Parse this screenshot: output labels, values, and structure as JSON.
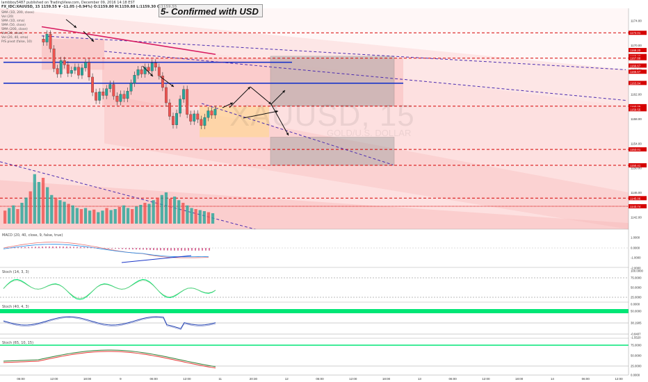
{
  "header": {
    "line1": "lambboy5487 published on TradingView.com, December 09, 2016 14:18 EST",
    "line2": "FX_IDC:XAUUSD, 15  1159.55 ▼ -11.05 (-0.94%)  O:1159.80 H:1159.88 L:1159.30 C:1159.55"
  },
  "annotation": "5- Confirmed with USD",
  "watermark": {
    "symbol": "XAUUSD, 15",
    "sub": "GOLD/U.S. DOLLAR"
  },
  "legend_items": [
    "SMA (1D, 200, close)",
    "Vol (20)",
    "SMA (1D, sma)",
    "SMA (50, close)",
    "SMA (200, close)",
    "Vol (20, close)",
    "Vol (20, 40, sma)",
    "P/S pivot (false, 10)"
  ],
  "panels": {
    "macd": "MACD (20, 40, close, 9, false, true)",
    "stoch1": "Stoch (14, 3, 3)",
    "stoch2": "Stoch (40, 4, 3)",
    "stoch3": "Stoch (65, 10, 15)"
  },
  "colors": {
    "up": "#26a69a",
    "down": "#ef5350",
    "level": "#d50000",
    "trend": "#1a237e",
    "zone_pink": "#f8b4b4",
    "zone_orange": "#ffd699",
    "stoch_green": "#00e676",
    "stoch_blue": "#1e3fb0",
    "magenta": "#d81b60"
  },
  "chart_data": {
    "type": "line",
    "symbol": "XAUUSD",
    "interval": "15",
    "close": 1159.55,
    "ylim": [
      1140,
      1176
    ],
    "y_ticks": [
      1174.0,
      1170.0,
      1166.0,
      1162.0,
      1158.0,
      1154.0,
      1150.0,
      1146.0,
      1142.0
    ],
    "price_labels": [
      {
        "value": "1172.01",
        "color": "#d50000"
      },
      {
        "value": "1169.20",
        "color": "#d50000"
      },
      {
        "value": "1168.23",
        "color": "#d50000"
      },
      {
        "value": "1167.88",
        "color": "#d50000"
      },
      {
        "value": "1166.67",
        "color": "#d50000"
      },
      {
        "value": "1165.67",
        "color": "#d50000"
      },
      {
        "value": "1163.84",
        "color": "#d50000"
      },
      {
        "value": "1160.05",
        "color": "#d50000"
      },
      {
        "value": "1159.55",
        "color": "#d50000"
      },
      {
        "value": "1153.01",
        "color": "#d50000"
      },
      {
        "value": "1150.41",
        "color": "#d50000"
      },
      {
        "value": "1145.06",
        "color": "#d50000"
      },
      {
        "value": "1143.74",
        "color": "#d50000"
      }
    ],
    "x_ticks": [
      "06:00",
      "12:00",
      "18:00",
      "9",
      "06:00",
      "12:00",
      "11",
      "20:30",
      "12",
      "06:00",
      "12:00",
      "18:00",
      "13",
      "06:00",
      "12:00",
      "18:00",
      "14",
      "06:00",
      "12:00"
    ],
    "closes": [
      1170.5,
      1171.8,
      1169.4,
      1166.2,
      1165.3,
      1167.5,
      1166.8,
      1165.4,
      1165.9,
      1166.4,
      1165.1,
      1166.3,
      1167.2,
      1164.8,
      1162.3,
      1161.0,
      1162.4,
      1161.8,
      1162.9,
      1163.6,
      1161.7,
      1160.8,
      1162.0,
      1161.3,
      1162.5,
      1163.8,
      1165.1,
      1166.0,
      1165.3,
      1166.4,
      1165.8,
      1167.1,
      1166.4,
      1165.0,
      1163.1,
      1160.6,
      1158.4,
      1157.0,
      1158.9,
      1161.2,
      1162.8,
      1158.7,
      1157.6,
      1158.8,
      1157.9,
      1156.9,
      1158.2,
      1159.3,
      1158.6,
      1159.55
    ],
    "horizontal_levels": [
      1172.01,
      1167.88,
      1160.05,
      1153.01,
      1150.41,
      1145.06,
      1143.74
    ],
    "macd_ticks": [
      "1.0000",
      "0.0000",
      "-1.0000",
      "-2.0000"
    ],
    "stoch1_ticks": [
      "100.0000",
      "75.0000",
      "50.0000",
      "25.0000",
      "0.0000"
    ],
    "stoch2_ticks": [
      "50.0000",
      "38.1905",
      "-0.8407",
      "-1.5520"
    ],
    "stoch3_ticks": [
      "75.0000",
      "50.0000",
      "25.0000",
      "0.0000"
    ]
  }
}
